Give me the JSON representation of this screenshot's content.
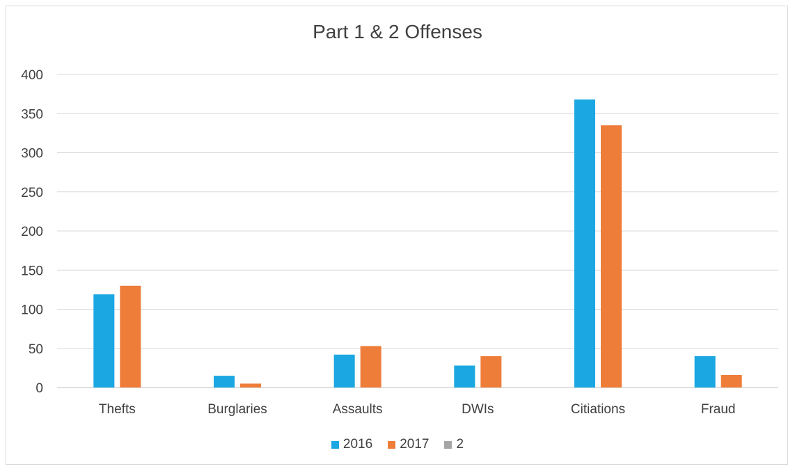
{
  "chart_data": {
    "type": "bar",
    "title": "Part 1 & 2 Offenses",
    "categories": [
      "Thefts",
      "Burglaries",
      "Assaults",
      "DWIs",
      "Citiations",
      "Fraud"
    ],
    "series": [
      {
        "name": "2016",
        "color": "#1aa7e2",
        "values": [
          119,
          15,
          42,
          28,
          368,
          40
        ]
      },
      {
        "name": "2017",
        "color": "#ee7d3a",
        "values": [
          130,
          5,
          53,
          40,
          335,
          16
        ]
      },
      {
        "name": "2",
        "color": "#a6a6a6",
        "values": [
          0,
          0,
          0,
          0,
          0,
          0
        ]
      }
    ],
    "ylim": [
      0,
      400
    ],
    "yticks": [
      "0",
      "50",
      "100",
      "150",
      "200",
      "250",
      "300",
      "350",
      "400"
    ],
    "grid": true,
    "legend_position": "bottom"
  }
}
